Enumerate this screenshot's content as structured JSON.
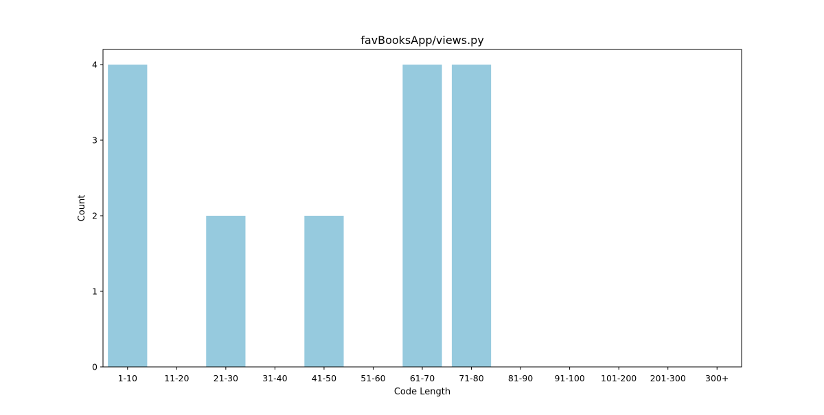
{
  "chart_data": {
    "type": "bar",
    "title": "favBooksApp/views.py",
    "xlabel": "Code Length",
    "ylabel": "Count",
    "categories": [
      "1-10",
      "11-20",
      "21-30",
      "31-40",
      "41-50",
      "51-60",
      "61-70",
      "71-80",
      "81-90",
      "91-100",
      "101-200",
      "201-300",
      "300+"
    ],
    "values": [
      4,
      0,
      2,
      0,
      2,
      0,
      4,
      4,
      0,
      0,
      0,
      0,
      0
    ],
    "ylim": [
      0,
      4.2
    ],
    "yticks": [
      0,
      1,
      2,
      3,
      4
    ],
    "grid": false,
    "bar_color": "#96cade"
  }
}
